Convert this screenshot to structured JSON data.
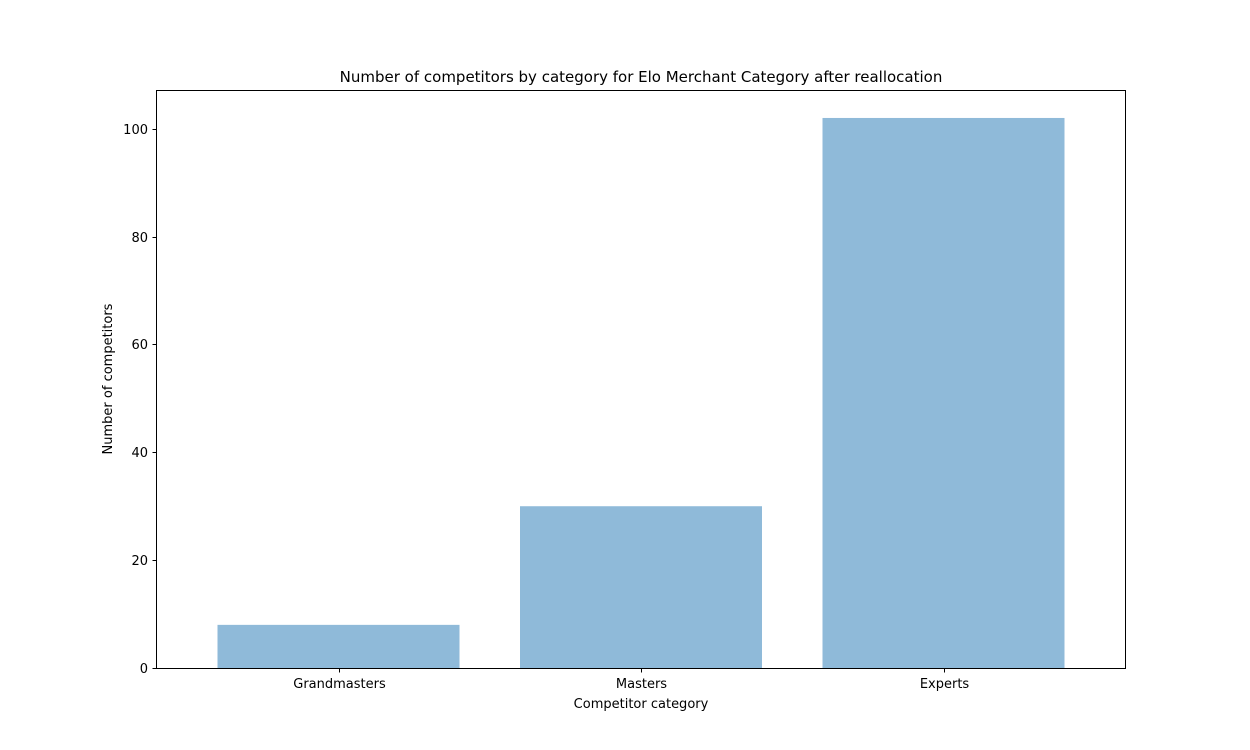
{
  "chart_data": {
    "type": "bar",
    "title": "Number of competitors by category for Elo Merchant Category  after reallocation",
    "xlabel": "Competitor category",
    "ylabel": "Number of competitors",
    "categories": [
      "Grandmasters",
      "Masters",
      "Experts"
    ],
    "values": [
      8,
      30,
      102
    ],
    "ylim": [
      0,
      107
    ],
    "yticks": [
      0,
      20,
      40,
      60,
      80,
      100
    ],
    "grid": false,
    "bar_color": "#8fbad9"
  }
}
